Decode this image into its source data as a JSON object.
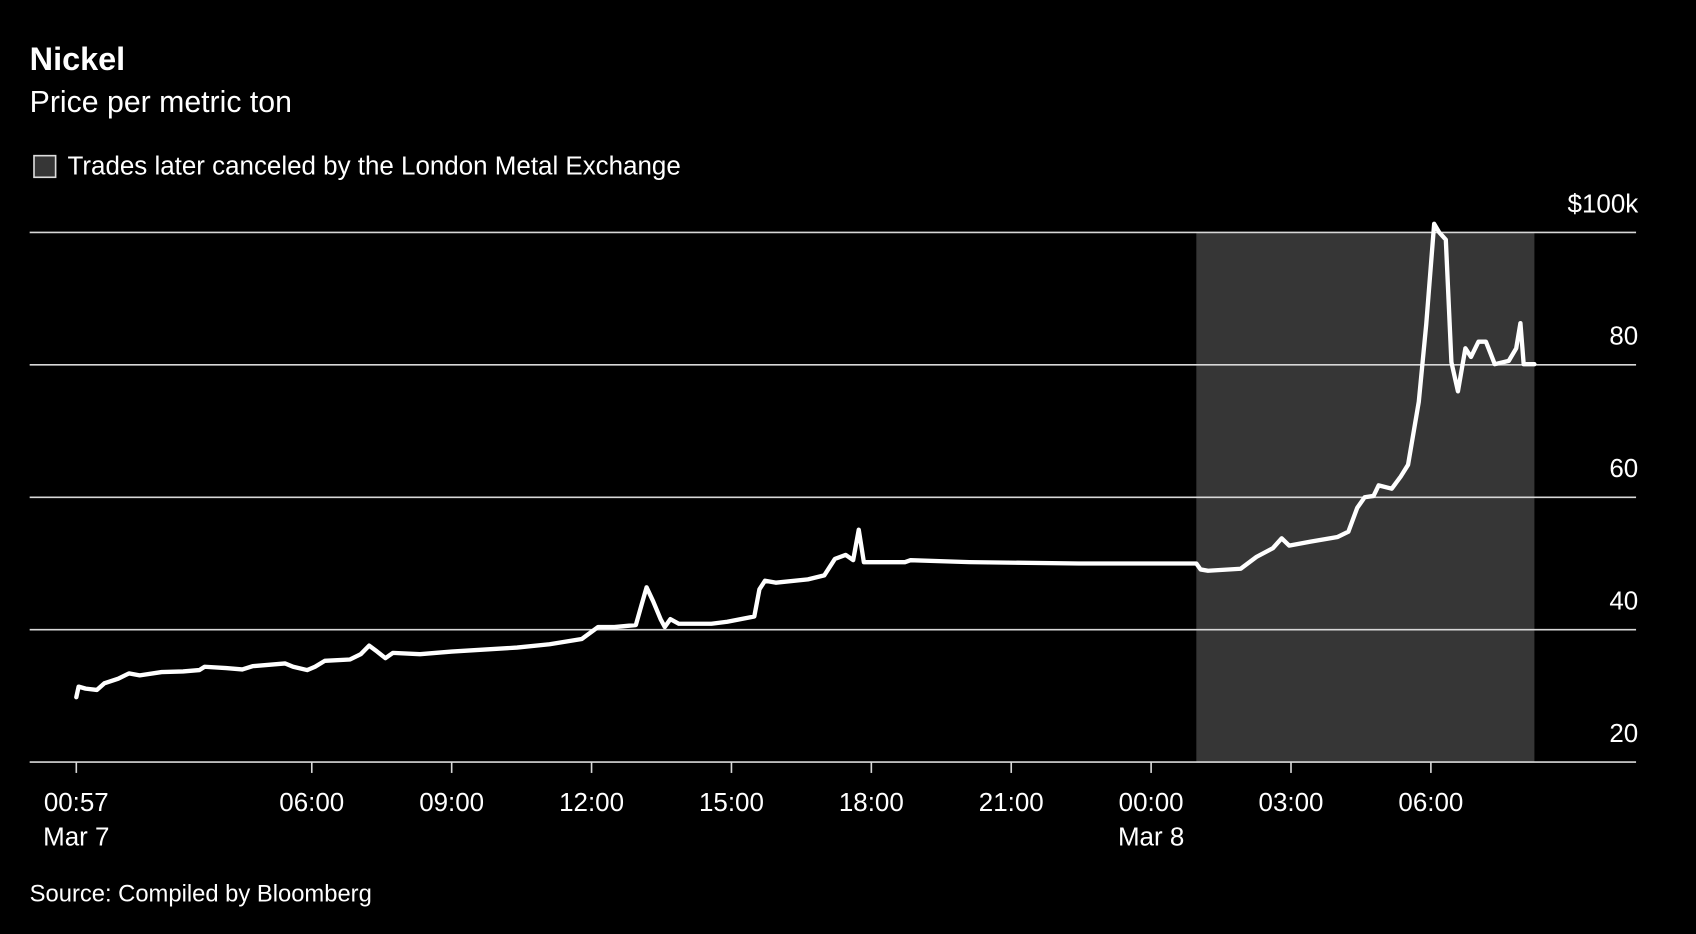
{
  "chart_data": {
    "type": "line",
    "title": "Nickel",
    "subtitle": "Price per metric ton",
    "source": "Source: Compiled by Bloomberg",
    "color": "#ffffff",
    "shade": {
      "label": "Trades later canceled by the London Metal Exchange",
      "x": [
        24.97,
        32.22
      ],
      "color": "#363636"
    },
    "xlim": [
      -0.05,
      34.4
    ],
    "ylim": [
      20,
      100
    ],
    "grid": true,
    "xticks": [
      {
        "value": 0.95,
        "label": "00:57",
        "sublabel": "Mar 7"
      },
      {
        "value": 6,
        "label": "06:00"
      },
      {
        "value": 9,
        "label": "09:00"
      },
      {
        "value": 12,
        "label": "12:00"
      },
      {
        "value": 15,
        "label": "15:00"
      },
      {
        "value": 18,
        "label": "18:00"
      },
      {
        "value": 21,
        "label": "21:00"
      },
      {
        "value": 24,
        "label": "00:00",
        "sublabel": "Mar 8"
      },
      {
        "value": 27,
        "label": "03:00"
      },
      {
        "value": 30,
        "label": "06:00"
      }
    ],
    "yticks": [
      {
        "value": 100,
        "label": "$100k"
      },
      80,
      60,
      40,
      20
    ],
    "x": [
      0.95,
      1.0,
      1.15,
      1.39,
      1.55,
      1.85,
      2.08,
      2.31,
      2.78,
      3.24,
      3.59,
      3.7,
      4.16,
      4.51,
      4.74,
      5.43,
      5.6,
      5.9,
      6.07,
      6.28,
      6.82,
      7.05,
      7.23,
      7.4,
      7.58,
      7.74,
      8.32,
      9.0,
      9.7,
      10.4,
      11.1,
      11.79,
      12.14,
      12.49,
      12.95,
      13.07,
      13.18,
      13.32,
      13.48,
      13.57,
      13.69,
      13.87,
      14.57,
      14.91,
      15.49,
      15.6,
      15.72,
      15.95,
      16.64,
      16.99,
      17.22,
      17.45,
      17.61,
      17.73,
      17.84,
      18.72,
      18.84,
      20.1,
      22.45,
      24.97,
      25.06,
      25.22,
      25.92,
      26.26,
      26.61,
      26.8,
      26.96,
      27.42,
      28.0,
      28.23,
      28.42,
      28.58,
      28.77,
      28.88,
      29.16,
      29.35,
      29.51,
      29.74,
      29.9,
      30.07,
      30.18,
      30.32,
      30.44,
      30.58,
      30.74,
      30.86,
      31.02,
      31.18,
      31.37,
      31.67,
      31.83,
      31.92,
      31.99,
      32.22
    ],
    "values": [
      29.8,
      31.4,
      31.1,
      30.9,
      31.9,
      32.6,
      33.4,
      33.1,
      33.6,
      33.7,
      33.9,
      34.4,
      34.2,
      34.0,
      34.5,
      34.9,
      34.4,
      33.9,
      34.4,
      35.3,
      35.5,
      36.3,
      37.6,
      36.7,
      35.7,
      36.5,
      36.3,
      36.7,
      37.0,
      37.3,
      37.8,
      38.6,
      40.4,
      40.4,
      40.7,
      43.7,
      46.4,
      44.3,
      41.6,
      40.4,
      41.6,
      40.9,
      40.9,
      41.2,
      42.0,
      46.1,
      47.4,
      47.1,
      47.6,
      48.2,
      50.7,
      51.3,
      50.5,
      55.1,
      50.2,
      50.2,
      50.5,
      50.2,
      50.0,
      50.0,
      49.1,
      48.9,
      49.2,
      51.0,
      52.3,
      53.8,
      52.7,
      53.3,
      54.0,
      54.8,
      58.4,
      60.0,
      60.2,
      61.8,
      61.3,
      63.1,
      64.9,
      74.4,
      86.1,
      101.3,
      100.0,
      98.9,
      80.4,
      76.0,
      82.5,
      81.2,
      83.5,
      83.5,
      80.1,
      80.6,
      82.5,
      86.3,
      80.1,
      80.1
    ]
  }
}
